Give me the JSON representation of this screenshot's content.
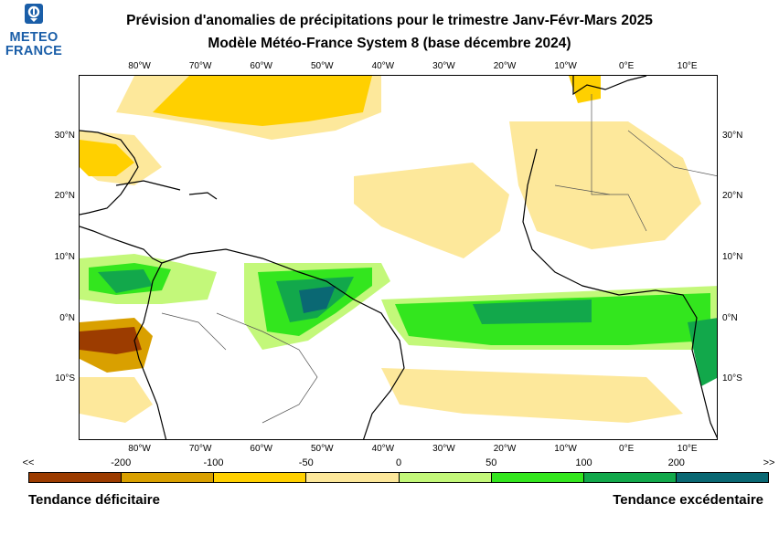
{
  "branding": {
    "logo_line1": "METEO",
    "logo_line2": "FRANCE"
  },
  "header": {
    "title_line1": "Prévision d'anomalies de précipitations pour le trimestre Janv-Févr-Mars 2025",
    "title_line2": "Modèle Météo-France System 8 (base décembre 2024)"
  },
  "map": {
    "lon_labels": [
      "80°W",
      "70°W",
      "60°W",
      "50°W",
      "40°W",
      "30°W",
      "20°W",
      "10°W",
      "0°E",
      "10°E"
    ],
    "lat_labels": [
      "30°N",
      "20°N",
      "10°N",
      "0°N",
      "10°S"
    ],
    "lon_range": [
      -90,
      15
    ],
    "lat_range": [
      -20,
      40
    ],
    "coastline_color": "#000000",
    "border_color": "#555555"
  },
  "legend": {
    "ticks": [
      "<<",
      "-200",
      "-100",
      "-50",
      "0",
      "50",
      "100",
      "200",
      ">>"
    ],
    "colors": [
      "#9c3c00",
      "#d9a000",
      "#ffd000",
      "#fde89b",
      "#c3f87a",
      "#33e61e",
      "#12a84b",
      "#0a6873"
    ],
    "left_caption": "Tendance déficitaire",
    "right_caption": "Tendance excédentaire"
  }
}
